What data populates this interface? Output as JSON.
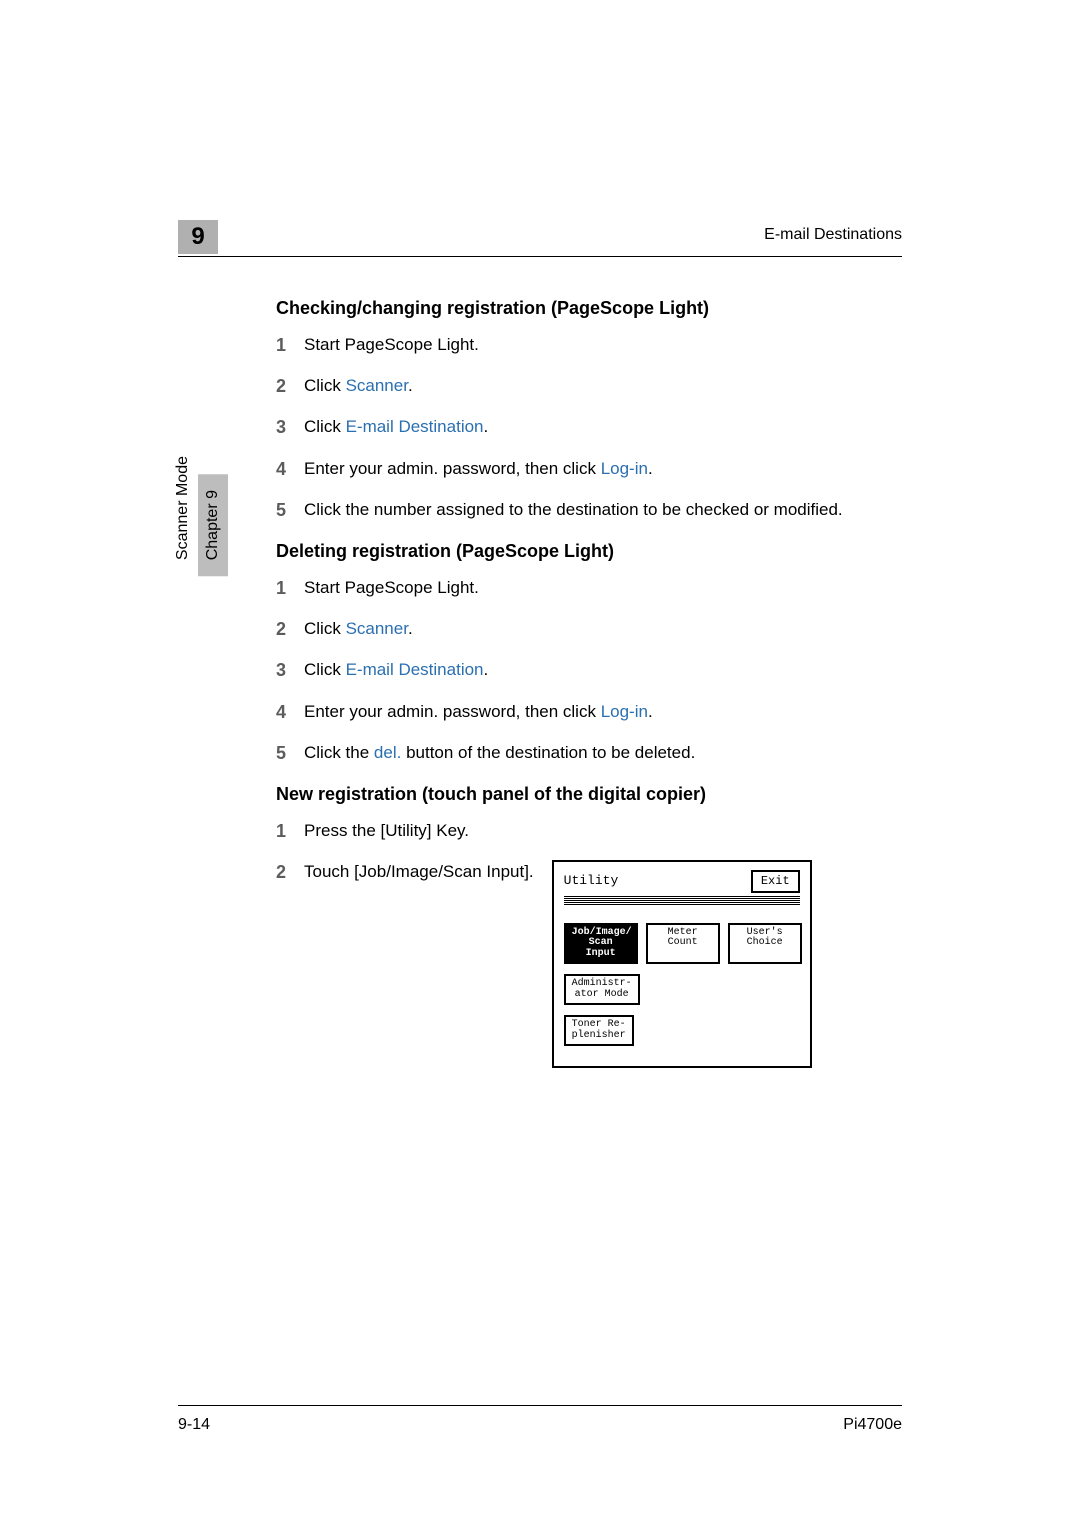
{
  "header": {
    "chapter_number": "9",
    "running_title": "E-mail Destinations"
  },
  "side_tabs": {
    "inactive_label": "Scanner Mode",
    "active_label": "Chapter 9"
  },
  "sections": [
    {
      "heading": "Checking/changing registration (PageScope Light)",
      "steps": [
        {
          "num": "1",
          "parts": [
            {
              "t": "Start PageScope Light."
            }
          ]
        },
        {
          "num": "2",
          "parts": [
            {
              "t": "Click "
            },
            {
              "t": "Scanner",
              "link": true
            },
            {
              "t": "."
            }
          ]
        },
        {
          "num": "3",
          "parts": [
            {
              "t": "Click "
            },
            {
              "t": "E-mail Destination",
              "link": true
            },
            {
              "t": "."
            }
          ]
        },
        {
          "num": "4",
          "parts": [
            {
              "t": "Enter your admin. password, then click "
            },
            {
              "t": "Log-in",
              "link": true
            },
            {
              "t": "."
            }
          ]
        },
        {
          "num": "5",
          "parts": [
            {
              "t": "Click the number assigned to the destination to be checked or modified."
            }
          ]
        }
      ]
    },
    {
      "heading": "Deleting registration (PageScope Light)",
      "steps": [
        {
          "num": "1",
          "parts": [
            {
              "t": "Start PageScope Light."
            }
          ]
        },
        {
          "num": "2",
          "parts": [
            {
              "t": "Click "
            },
            {
              "t": "Scanner",
              "link": true
            },
            {
              "t": "."
            }
          ]
        },
        {
          "num": "3",
          "parts": [
            {
              "t": "Click "
            },
            {
              "t": "E-mail Destination",
              "link": true
            },
            {
              "t": "."
            }
          ]
        },
        {
          "num": "4",
          "parts": [
            {
              "t": "Enter your admin. password, then click "
            },
            {
              "t": "Log-in",
              "link": true
            },
            {
              "t": "."
            }
          ]
        },
        {
          "num": "5",
          "parts": [
            {
              "t": "Click the "
            },
            {
              "t": "del.",
              "link": true
            },
            {
              "t": " button of the destination to be deleted."
            }
          ]
        }
      ]
    },
    {
      "heading": "New registration (touch panel of the digital copier)",
      "steps": [
        {
          "num": "1",
          "parts": [
            {
              "t": "Press the [Utility] Key."
            }
          ]
        },
        {
          "num": "2",
          "parts": [
            {
              "t": "Touch [Job/Image/Scan Input]."
            }
          ],
          "figure": true
        }
      ]
    }
  ],
  "panel": {
    "title": "Utility",
    "exit_label": "Exit",
    "row1": [
      {
        "label": "Job/Image/\nScan Input",
        "dark": true
      },
      {
        "label": "Meter\nCount"
      },
      {
        "label": "User's\nChoice"
      }
    ],
    "row2": [
      {
        "label": "Administr-\nator Mode"
      }
    ],
    "row3": [
      {
        "label": "Toner Re-\nplenisher"
      }
    ]
  },
  "footer": {
    "page": "9-14",
    "doc": "Pi4700e"
  },
  "colors": {
    "link": "#2a6fb0",
    "badge_bg": "#b0b0b0",
    "step_num": "#5c5c5c"
  }
}
